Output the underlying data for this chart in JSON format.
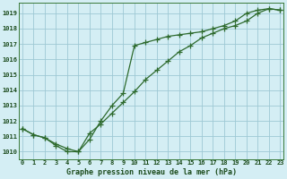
{
  "title": "Graphe pression niveau de la mer (hPa)",
  "bg_color": "#d4eef4",
  "grid_color": "#9ec8d4",
  "line_color": "#2d6a2d",
  "marker": "+",
  "x_ticks": [
    0,
    1,
    2,
    3,
    4,
    5,
    6,
    7,
    8,
    9,
    10,
    11,
    12,
    13,
    14,
    15,
    16,
    17,
    18,
    19,
    20,
    21,
    22,
    23
  ],
  "y_ticks": [
    1010,
    1011,
    1012,
    1013,
    1014,
    1015,
    1016,
    1017,
    1018,
    1019
  ],
  "ylim": [
    1009.5,
    1019.7
  ],
  "xlim": [
    -0.3,
    23.3
  ],
  "line1_x": [
    0,
    1,
    2,
    3,
    4,
    5,
    6,
    7,
    8,
    9,
    10,
    11,
    12,
    13,
    14,
    15,
    16,
    17,
    18,
    19,
    20,
    21,
    22,
    23
  ],
  "line1_y": [
    1011.5,
    1011.1,
    1010.9,
    1010.4,
    1010.0,
    1010.0,
    1011.2,
    1011.8,
    1012.5,
    1013.2,
    1013.9,
    1014.7,
    1015.3,
    1015.9,
    1016.5,
    1016.9,
    1017.4,
    1017.7,
    1018.0,
    1018.2,
    1018.5,
    1019.0,
    1019.3,
    1019.2
  ],
  "line2_x": [
    0,
    1,
    2,
    3,
    4,
    5,
    6,
    7,
    8,
    9,
    10,
    11,
    12,
    13,
    14,
    15,
    16,
    17,
    18,
    19,
    20,
    21,
    22,
    23
  ],
  "line2_y": [
    1011.5,
    1011.1,
    1010.9,
    1010.5,
    1010.2,
    1010.0,
    1010.8,
    1012.0,
    1013.0,
    1013.8,
    1016.9,
    1017.1,
    1017.3,
    1017.5,
    1017.6,
    1017.7,
    1017.8,
    1018.0,
    1018.2,
    1018.5,
    1019.0,
    1019.2,
    1019.3,
    1019.2
  ]
}
